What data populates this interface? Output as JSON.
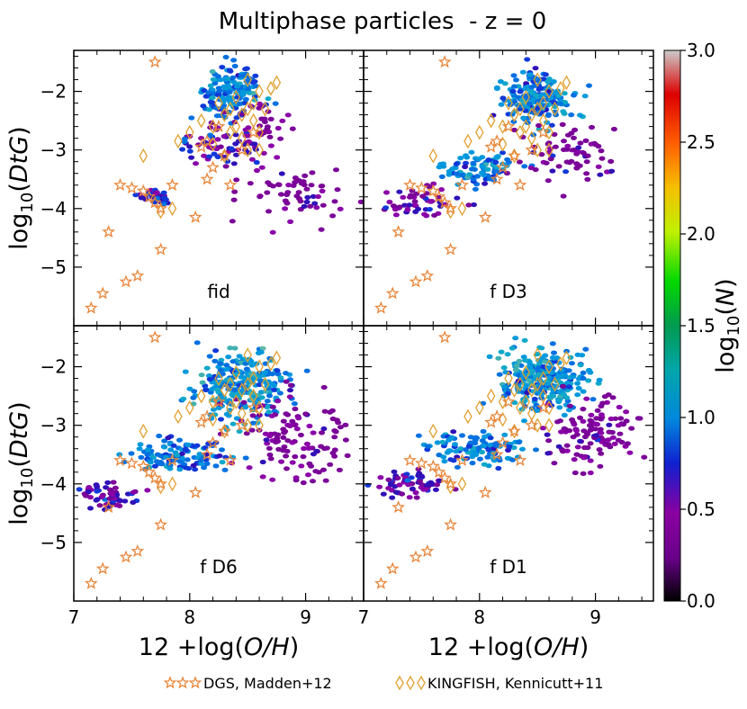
{
  "figure": {
    "title": "Multiphase particles  - z = 0",
    "ylabel": "log10(DtG)",
    "xlabel": "12 +log(O/H)",
    "colorbar": {
      "label": "log10(N)",
      "ticks": [
        "0.0",
        "0.5",
        "1.0",
        "1.5",
        "2.0",
        "2.5",
        "3.0"
      ],
      "range": [
        0.0,
        3.0
      ],
      "colormap": "spectral"
    },
    "legend": [
      {
        "name": "DGS, Madden+12",
        "marker": "star",
        "color": "#e8863a"
      },
      {
        "name": "KINGFISH, Kennicutt+11",
        "marker": "diamond",
        "color": "#e0a030"
      }
    ]
  },
  "chart_data": {
    "type": "scatter",
    "layout": "2x2 panels sharing axes",
    "xlim": [
      7.0,
      9.5
    ],
    "ylim": [
      -6.0,
      -1.3
    ],
    "xticks": [
      "7",
      "8",
      "9"
    ],
    "yticks": [
      "-5",
      "-4",
      "-3",
      "-2"
    ],
    "panels": [
      {
        "label": "fid",
        "background": "hexbin density of multiphase particles"
      },
      {
        "label": "f D3",
        "background": "hexbin density of multiphase particles"
      },
      {
        "label": "f D6",
        "background": "hexbin density of multiphase particles"
      },
      {
        "label": "f D1",
        "background": "hexbin density of multiphase particles"
      }
    ],
    "series": [
      {
        "name": "DGS, Madden+12",
        "marker": "star",
        "points": [
          [
            7.15,
            -5.7
          ],
          [
            7.25,
            -5.45
          ],
          [
            7.3,
            -4.4
          ],
          [
            7.45,
            -5.25
          ],
          [
            7.55,
            -5.15
          ],
          [
            7.75,
            -4.7
          ],
          [
            7.7,
            -1.5
          ],
          [
            7.4,
            -3.6
          ],
          [
            7.5,
            -3.65
          ],
          [
            7.6,
            -3.7
          ],
          [
            7.65,
            -3.8
          ],
          [
            7.7,
            -3.9
          ],
          [
            7.75,
            -4.0
          ],
          [
            7.85,
            -3.6
          ],
          [
            8.05,
            -4.15
          ],
          [
            8.15,
            -3.5
          ],
          [
            8.2,
            -3.3
          ],
          [
            8.3,
            -3.1
          ],
          [
            8.15,
            -2.85
          ],
          [
            8.35,
            -3.6
          ],
          [
            8.45,
            -3.0
          ],
          [
            8.55,
            -2.7
          ],
          [
            8.1,
            -2.95
          ],
          [
            8.25,
            -2.6
          ]
        ]
      },
      {
        "name": "KINGFISH, Kennicutt+11",
        "marker": "diamond",
        "points": [
          [
            7.6,
            -3.1
          ],
          [
            7.75,
            -4.05
          ],
          [
            7.85,
            -4.0
          ],
          [
            7.9,
            -2.85
          ],
          [
            8.0,
            -2.7
          ],
          [
            8.1,
            -2.5
          ],
          [
            8.2,
            -2.6
          ],
          [
            8.25,
            -2.2
          ],
          [
            8.3,
            -2.4
          ],
          [
            8.35,
            -2.3
          ],
          [
            8.35,
            -2.7
          ],
          [
            8.4,
            -2.1
          ],
          [
            8.4,
            -2.6
          ],
          [
            8.45,
            -2.4
          ],
          [
            8.45,
            -2.8
          ],
          [
            8.5,
            -1.8
          ],
          [
            8.5,
            -2.3
          ],
          [
            8.55,
            -2.2
          ],
          [
            8.55,
            -2.5
          ],
          [
            8.6,
            -2.0
          ],
          [
            8.6,
            -2.7
          ],
          [
            8.65,
            -2.3
          ],
          [
            8.7,
            -1.95
          ],
          [
            8.75,
            -1.85
          ],
          [
            8.5,
            -3.0
          ],
          [
            8.3,
            -3.1
          ],
          [
            8.2,
            -2.9
          ],
          [
            8.6,
            -3.0
          ]
        ]
      }
    ]
  }
}
